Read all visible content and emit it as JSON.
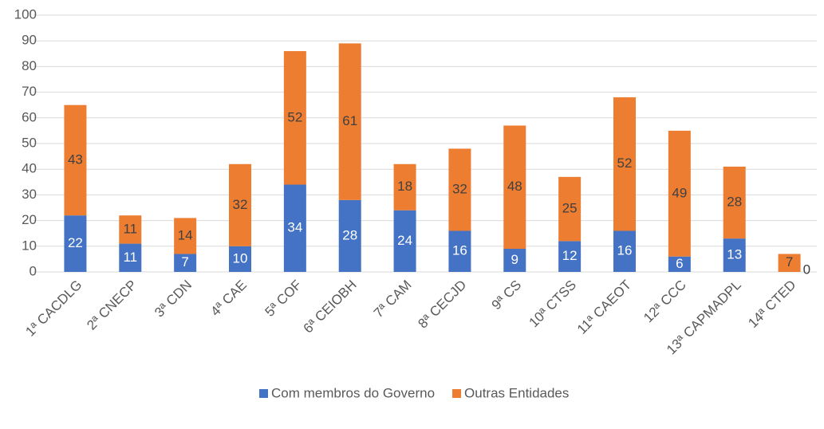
{
  "chart_data": {
    "type": "stacked_bar",
    "categories": [
      "1ª CACDLG",
      "2ª CNECP",
      "3ª CDN",
      "4ª CAE",
      "5ª COF",
      "6ª CEIOBH",
      "7ª CAM",
      "8ª CECJD",
      "9ª CS",
      "10ª CTSS",
      "11ª CAEOT",
      "12ª CCC",
      "13ª CAPMADPL",
      "14ª CTED"
    ],
    "series": [
      {
        "name": "Com membros do Governo",
        "color": "#4472c4",
        "values": [
          22,
          11,
          7,
          10,
          34,
          28,
          24,
          16,
          9,
          12,
          16,
          6,
          13,
          0
        ]
      },
      {
        "name": "Outras Entidades",
        "color": "#ed7d31",
        "values": [
          43,
          11,
          14,
          32,
          52,
          61,
          18,
          32,
          48,
          25,
          52,
          49,
          28,
          7
        ]
      }
    ],
    "ylim": [
      0,
      100
    ],
    "yticks": [
      0,
      10,
      20,
      30,
      40,
      50,
      60,
      70,
      80,
      90,
      100
    ],
    "grid": true,
    "legend": "bottom"
  }
}
